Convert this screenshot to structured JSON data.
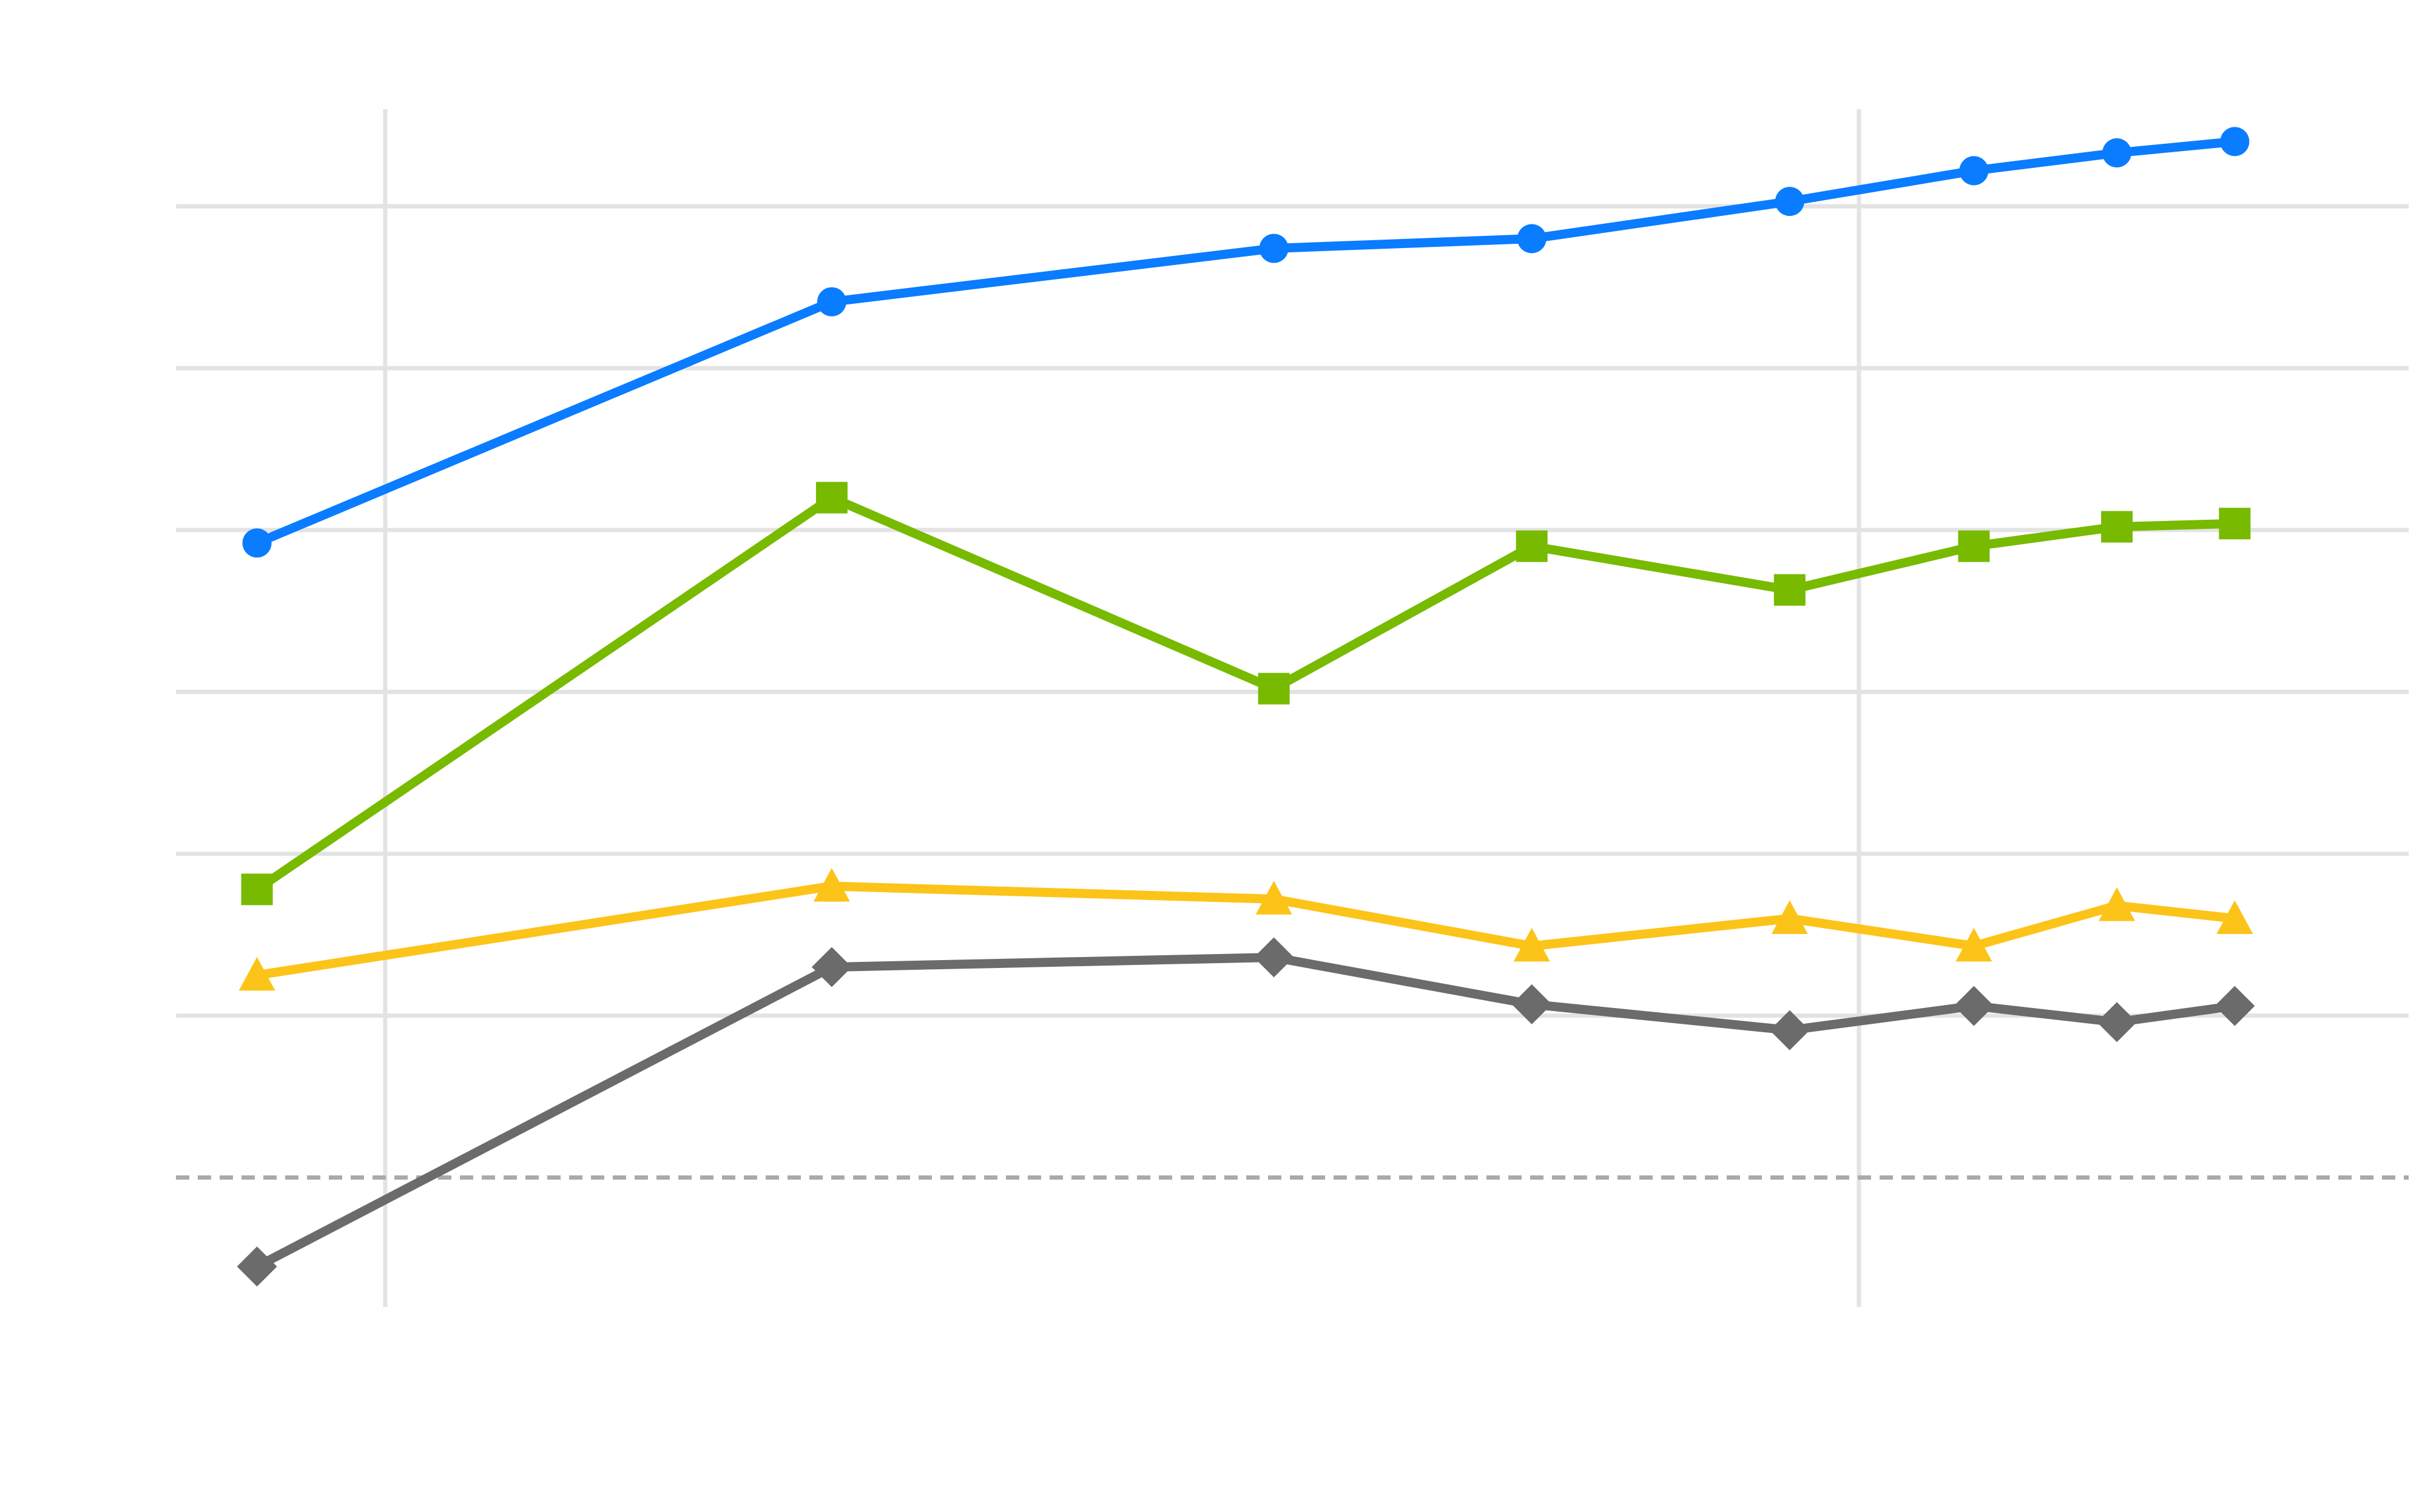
{
  "chart_data": {
    "type": "line",
    "title": "",
    "xlabel": "",
    "ylabel": "",
    "x": [
      1,
      4.9,
      7.9,
      9.65,
      11.4,
      12.65,
      13.62,
      14.42
    ],
    "xlim": [
      0.45,
      15.6
    ],
    "ylim": [
      -0.8,
      6.6
    ],
    "x_gridlines": [
      1.87,
      11.87
    ],
    "y_gridlines": [
      1,
      2,
      3,
      4,
      5,
      6
    ],
    "reference_line": {
      "y": 0,
      "style": "dashed",
      "color": "#aaaaaa"
    },
    "grid": true,
    "legend": "none",
    "series": [
      {
        "color": "#0a7cff",
        "marker": "circle",
        "values": [
          3.92,
          5.41,
          5.74,
          5.8,
          6.03,
          6.22,
          6.33,
          6.4
        ]
      },
      {
        "color": "#77ba00",
        "marker": "square",
        "values": [
          1.78,
          4.2,
          3.02,
          3.9,
          3.63,
          3.9,
          4.02,
          4.04
        ]
      },
      {
        "color": "#fcc419",
        "marker": "triangle",
        "values": [
          1.25,
          1.8,
          1.72,
          1.43,
          1.6,
          1.43,
          1.68,
          1.6
        ]
      },
      {
        "color": "#6b6b6b",
        "marker": "diamond",
        "values": [
          -0.55,
          1.3,
          1.36,
          1.07,
          0.91,
          1.06,
          0.96,
          1.06
        ]
      }
    ]
  }
}
